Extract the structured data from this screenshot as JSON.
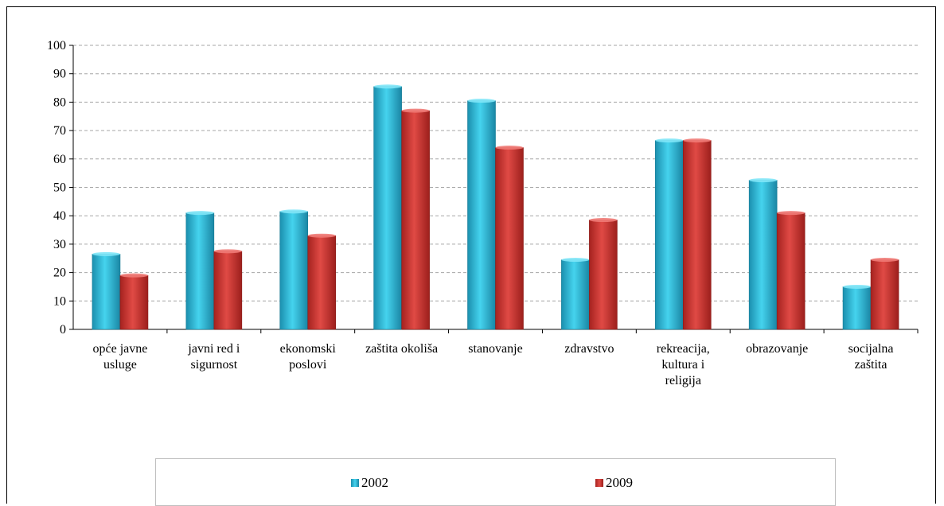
{
  "chart_data": {
    "type": "bar",
    "title": "",
    "xlabel": "",
    "ylabel": "",
    "ylim": [
      0,
      100
    ],
    "yticks": [
      0,
      10,
      20,
      30,
      40,
      50,
      60,
      70,
      80,
      90,
      100
    ],
    "grid": true,
    "legend_position": "bottom",
    "categories": [
      [
        "opće javne",
        "usluge"
      ],
      [
        "javni red i",
        "sigurnost"
      ],
      [
        "ekonomski",
        "poslovi"
      ],
      [
        "zaštita okoliša"
      ],
      [
        "stanovanje"
      ],
      [
        "zdravstvo"
      ],
      [
        "rekreacija,",
        "kultura i",
        "religija"
      ],
      [
        "obrazovanje"
      ],
      [
        "socijalna",
        "zaštita"
      ]
    ],
    "series": [
      {
        "name": "2002",
        "color": "#2fb8d6",
        "values": [
          26.5,
          41,
          41.5,
          85.5,
          80.5,
          24.5,
          66.5,
          52.5,
          15
        ]
      },
      {
        "name": "2009",
        "color": "#c9322f",
        "values": [
          19,
          27.5,
          33,
          77,
          64,
          38.5,
          66.5,
          41,
          24.5
        ]
      }
    ]
  }
}
